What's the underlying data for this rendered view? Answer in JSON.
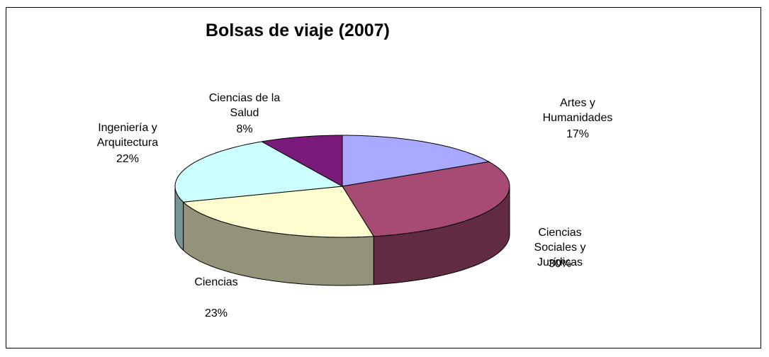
{
  "chart_data": {
    "type": "pie3d",
    "title": "Bolsas de viaje (2007)",
    "categories": [
      "Artes y Humanidades",
      "Ciencias Sociales y Jurídicas",
      "Ciencias",
      "Ingeniería y Arquitectura",
      "Ciencias de la Salud"
    ],
    "values": [
      17,
      30,
      23,
      22,
      8
    ],
    "value_labels": [
      "17%",
      "30%",
      "23%",
      "22%",
      "8%"
    ],
    "colors": [
      "#a9a9ff",
      "#a84b74",
      "#fffdd0",
      "#ccffff",
      "#7a1a7a"
    ]
  }
}
